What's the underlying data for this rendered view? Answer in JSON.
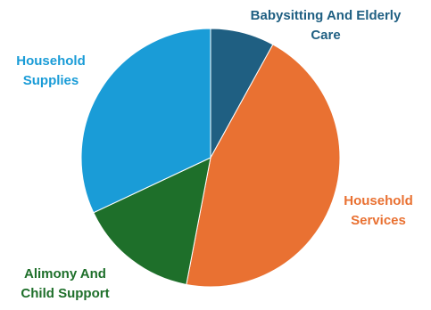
{
  "chart_data": {
    "type": "pie",
    "title": "",
    "start": "top",
    "direction": "clockwise",
    "legend": "none",
    "slices": [
      {
        "label": [
          "Babysitting And Elderly",
          "Care"
        ],
        "value": 8,
        "color": "#1F5F82"
      },
      {
        "label": [
          "Household",
          "Services"
        ],
        "value": 45,
        "color": "#E97132"
      },
      {
        "label": [
          "Alimony And",
          "Child Support"
        ],
        "value": 15,
        "color": "#1E6F2A"
      },
      {
        "label": [
          "Household",
          "Supplies"
        ],
        "value": 32,
        "color": "#1A9CD7"
      }
    ]
  }
}
